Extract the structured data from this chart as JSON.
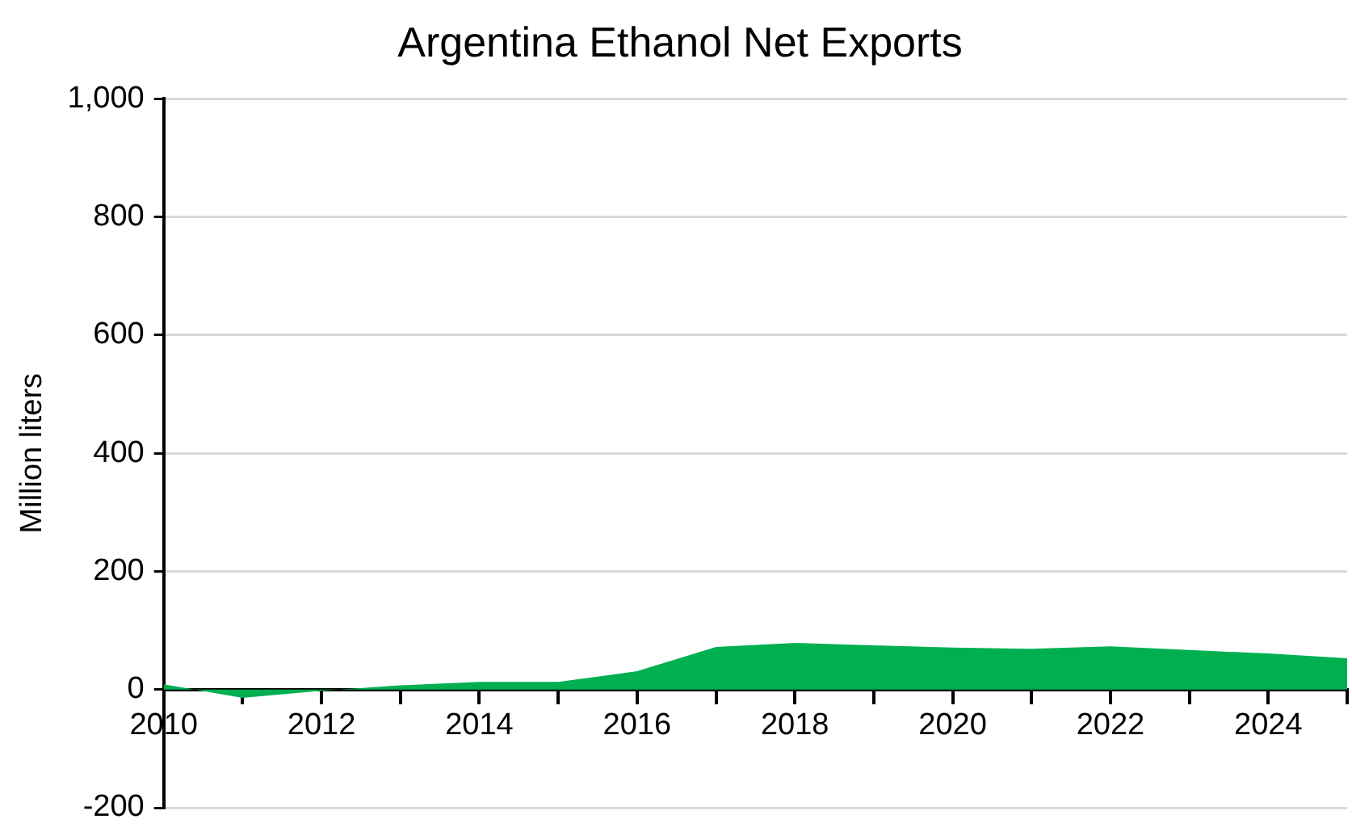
{
  "chart_data": {
    "type": "area",
    "title": "Argentina Ethanol Net Exports",
    "ylabel": "Million liters",
    "x": [
      2010,
      2011,
      2012,
      2013,
      2014,
      2015,
      2016,
      2017,
      2018,
      2019,
      2020,
      2021,
      2022,
      2023,
      2024,
      2025
    ],
    "series": [
      {
        "color": "#00b050",
        "values": [
          9,
          -14,
          -2,
          7,
          13,
          13,
          31,
          72,
          79,
          75,
          71,
          69,
          73,
          67,
          61,
          53
        ]
      }
    ],
    "xlim": [
      2010,
      2025
    ],
    "xticks": [
      2010,
      {
        "value": 2011,
        "label": null
      },
      2012,
      {
        "value": 2013,
        "label": null
      },
      2014,
      {
        "value": 2015,
        "label": null
      },
      2016,
      {
        "value": 2017,
        "label": null
      },
      2018,
      {
        "value": 2019,
        "label": null
      },
      2020,
      {
        "value": 2021,
        "label": null
      },
      2022,
      {
        "value": 2023,
        "label": null
      },
      2024,
      {
        "value": 2025,
        "label": null
      }
    ],
    "ylim": [
      -200,
      1000
    ],
    "yticks": [
      {
        "value": -200,
        "label": "-200"
      },
      {
        "value": 0,
        "label": "0"
      },
      {
        "value": 200,
        "label": "200"
      },
      {
        "value": 400,
        "label": "400"
      },
      {
        "value": 600,
        "label": "600"
      },
      {
        "value": 800,
        "label": "800"
      },
      {
        "value": 1000,
        "label": "1,000"
      }
    ],
    "grid": "y",
    "legend": false
  }
}
